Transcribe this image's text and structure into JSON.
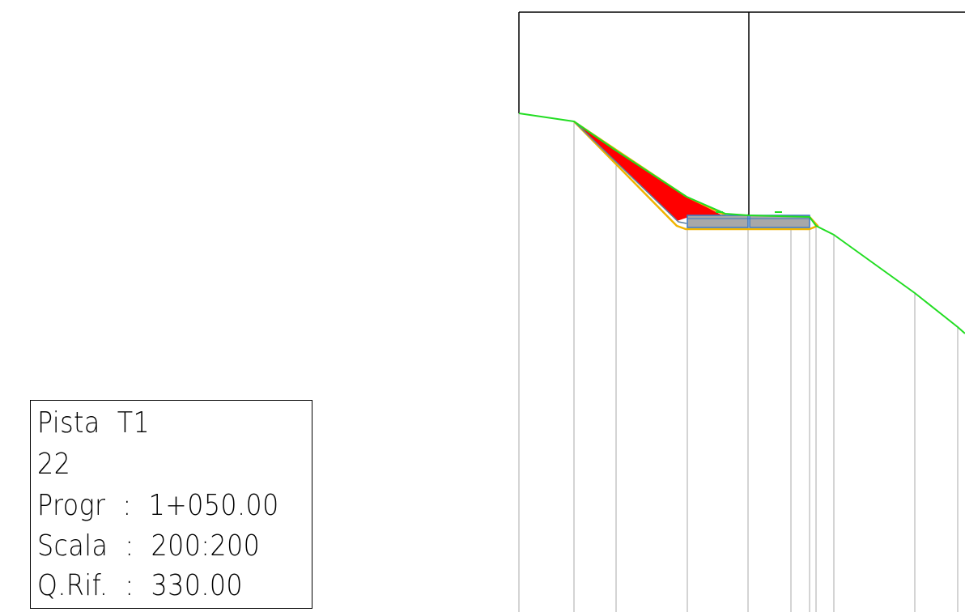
{
  "section_label": {
    "name": "Pista  T1",
    "number": "22",
    "progr": "Progr  :  1+050.00",
    "scala": "Scala  :  200:200",
    "qrif": "Q.Rif.  :  330.00"
  },
  "colors": {
    "ground_line": "#22dd22",
    "fill_area": "#ff0000",
    "embankment_outline": "#f0b400",
    "pavement_outline": "#3a78c2",
    "pavement_fill": "#a8a8a8",
    "reference_line": "#aaaaaa",
    "frame": "#000000"
  }
}
